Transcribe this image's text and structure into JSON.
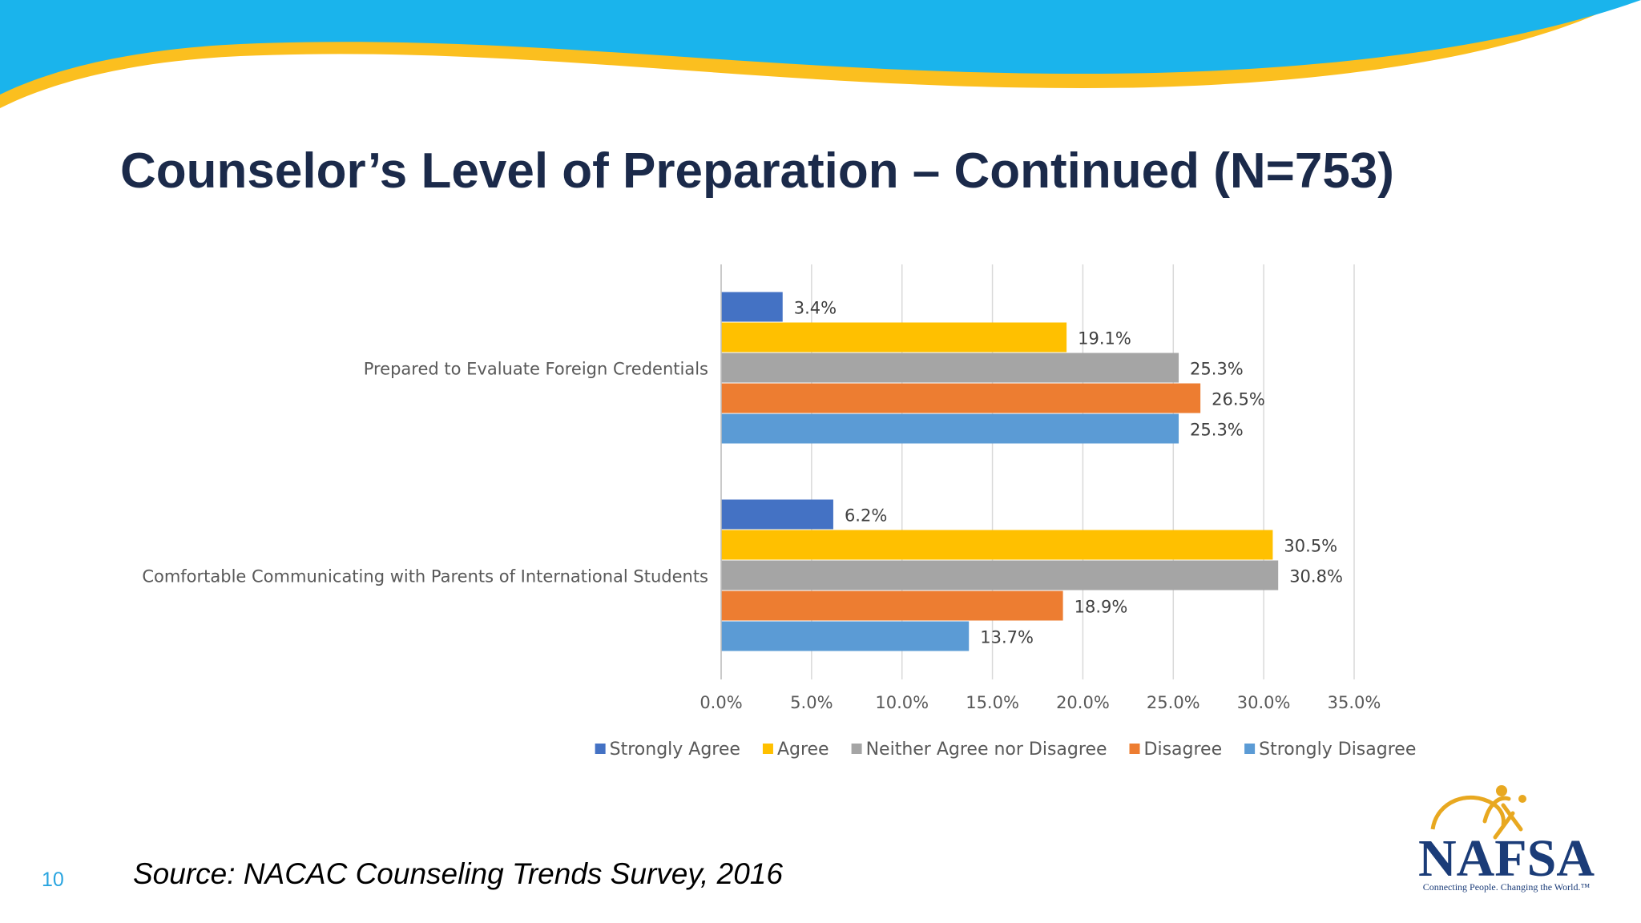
{
  "slide": {
    "title": "Counselor’s Level of Preparation – Continued (N=753)",
    "source": "Source: NACAC Counseling Trends Survey, 2016",
    "page_number": "10"
  },
  "logo": {
    "name": "NAFSA",
    "tagline": "Connecting People. Changing the World.™",
    "colors": {
      "text": "#1b3c78",
      "swirl": "#e8a820"
    }
  },
  "banner": {
    "colors": {
      "blue": "#1ab4ec",
      "yellow": "#fbbf1f"
    }
  },
  "chart_data": {
    "type": "bar",
    "orientation": "horizontal",
    "title": "",
    "categories": [
      "Prepared to Evaluate Foreign Credentials",
      "Comfortable Communicating with Parents of International Students"
    ],
    "series": [
      {
        "name": "Strongly Agree",
        "color": "#4472c4",
        "values": [
          3.4,
          6.2
        ],
        "labels": [
          "3.4%",
          "6.2%"
        ]
      },
      {
        "name": "Agree",
        "color": "#ffc000",
        "values": [
          19.1,
          30.5
        ],
        "labels": [
          "19.1%",
          "30.5%"
        ]
      },
      {
        "name": "Neither Agree nor Disagree",
        "color": "#a5a5a5",
        "values": [
          25.3,
          30.8
        ],
        "labels": [
          "25.3%",
          "30.8%"
        ]
      },
      {
        "name": "Disagree",
        "color": "#ed7d31",
        "values": [
          26.5,
          18.9
        ],
        "labels": [
          "26.5%",
          "18.9%"
        ]
      },
      {
        "name": "Strongly Disagree",
        "color": "#5b9bd5",
        "values": [
          25.3,
          13.7
        ],
        "labels": [
          "25.3%",
          "13.7%"
        ]
      }
    ],
    "xlim": [
      0,
      35
    ],
    "ticks": [
      0,
      5,
      10,
      15,
      20,
      25,
      30,
      35
    ],
    "tick_labels": [
      "0.0%",
      "5.0%",
      "10.0%",
      "15.0%",
      "20.0%",
      "25.0%",
      "30.0%",
      "35.0%"
    ],
    "xlabel": "",
    "ylabel": "",
    "grid": true,
    "legend": "bottom"
  }
}
